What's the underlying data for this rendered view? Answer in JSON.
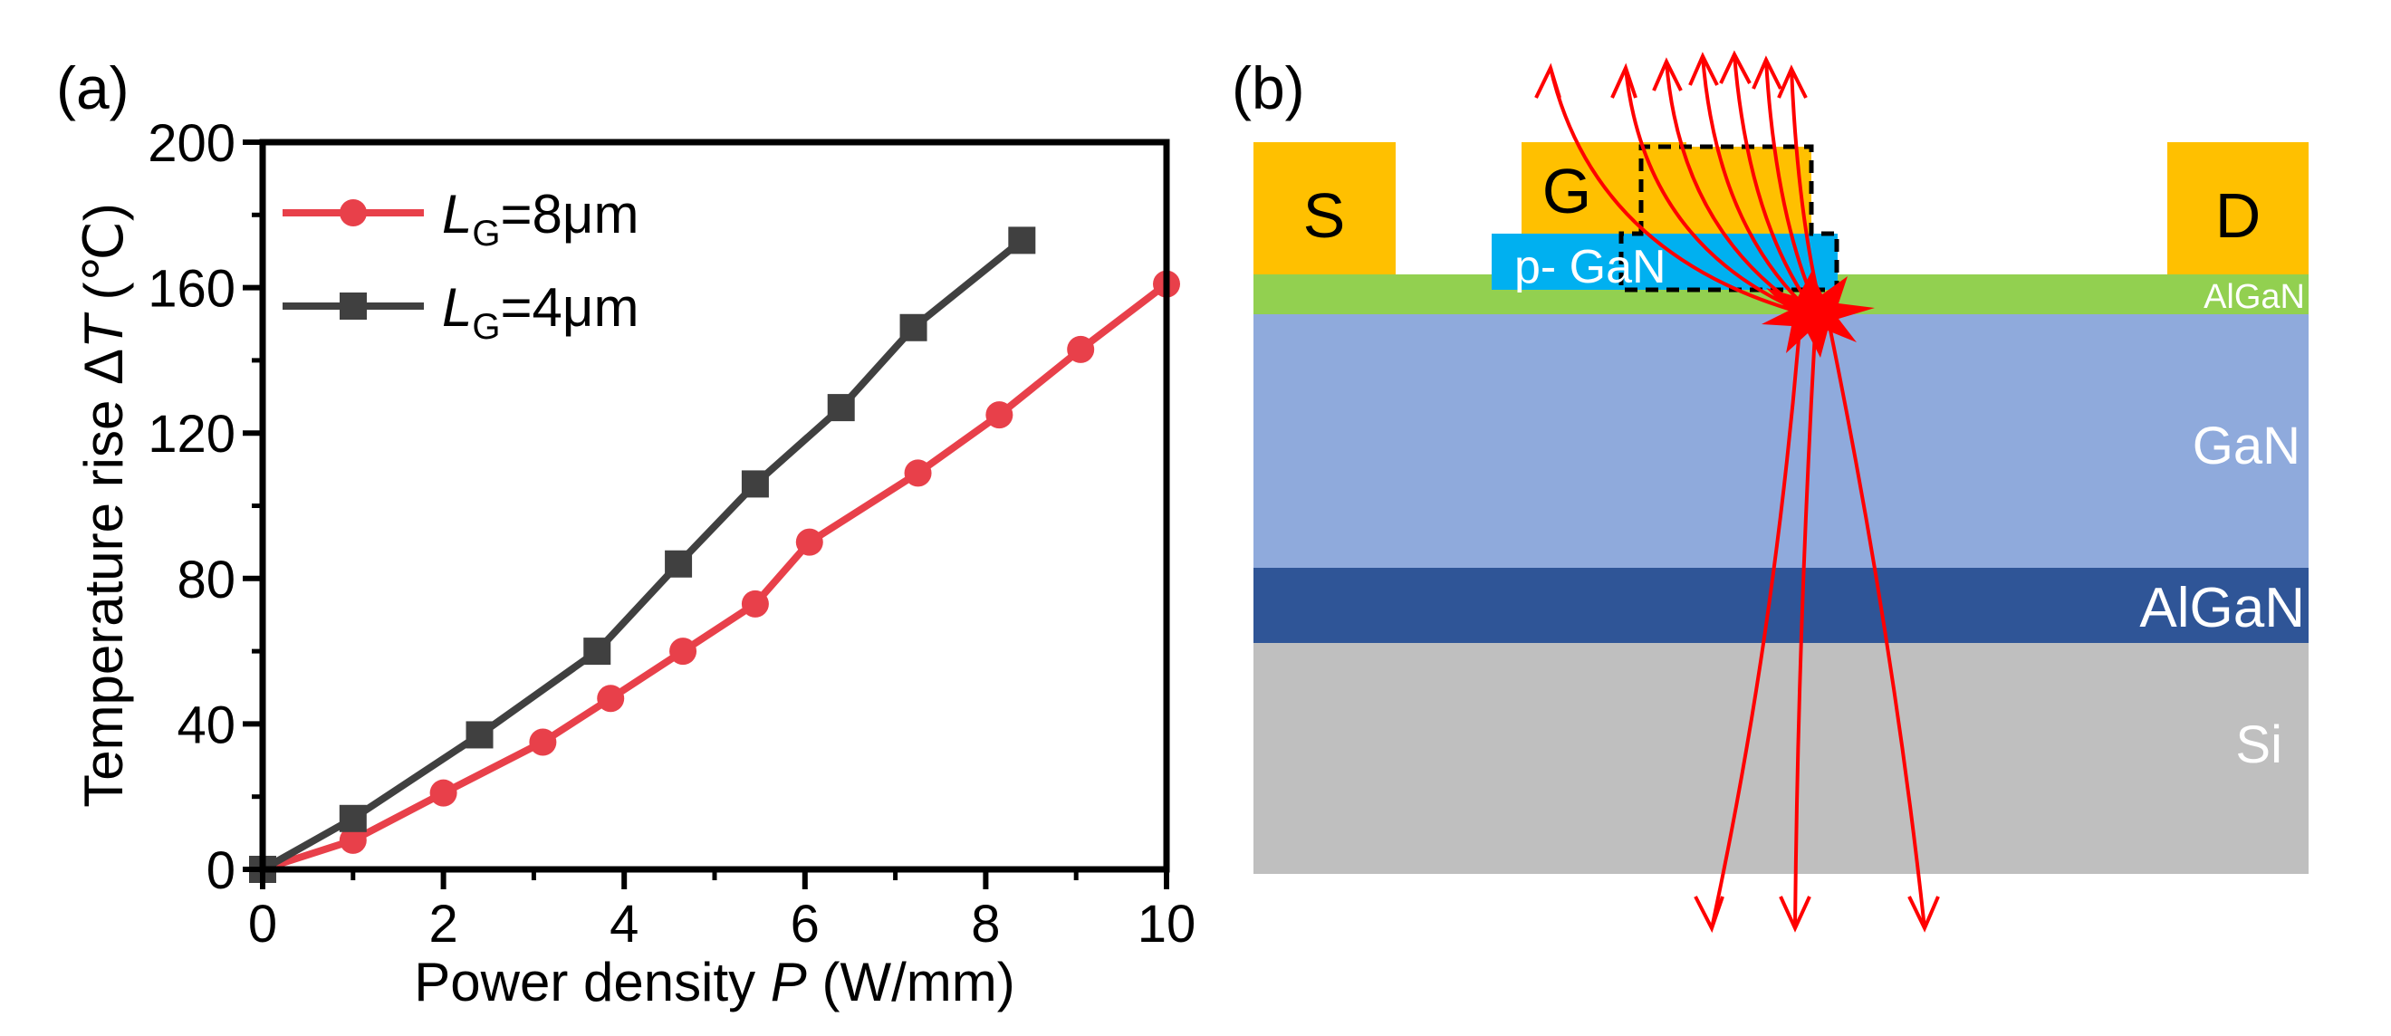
{
  "chart_data": [
    {
      "type": "line",
      "panel_label": "(a)",
      "xlabel_prefix": "Power density ",
      "xlabel_var": "P",
      "xlabel_suffix": " (W/mm)",
      "ylabel_prefix": "Temperature rise Δ",
      "ylabel_var": "T",
      "ylabel_suffix": " (℃)",
      "xlim": [
        0,
        10
      ],
      "ylim": [
        0,
        200
      ],
      "xticks": [
        0,
        2,
        4,
        6,
        8,
        10
      ],
      "yticks": [
        0,
        40,
        80,
        120,
        160,
        200
      ],
      "grid": false,
      "legend_position": "top-left",
      "series": [
        {
          "name": "LG=8μm",
          "legend_var": "L",
          "legend_sub": "G",
          "legend_rest": "=8μm",
          "marker": "circle",
          "color": "#e8404a",
          "x": [
            0,
            1.0,
            2.0,
            3.1,
            3.85,
            4.65,
            5.45,
            6.05,
            7.25,
            8.15,
            9.05,
            10.0
          ],
          "y": [
            0,
            8,
            21,
            35,
            47,
            60,
            73,
            90,
            109,
            125,
            143,
            161
          ]
        },
        {
          "name": "LG=4μm",
          "legend_var": "L",
          "legend_sub": "G",
          "legend_rest": "=4μm",
          "marker": "square",
          "color": "#404040",
          "x": [
            0,
            1.0,
            2.4,
            3.7,
            4.6,
            5.45,
            6.4,
            7.2,
            8.4
          ],
          "y": [
            0,
            14,
            37,
            60,
            84,
            106,
            127,
            149,
            173
          ]
        }
      ]
    },
    {
      "type": "diagram",
      "panel_label": "(b)",
      "electrodes": {
        "source": "S",
        "gate": "G",
        "drain": "D"
      },
      "layers": {
        "pgan": "p- GaN",
        "algan_barrier": "AlGaN",
        "gan_channel": "GaN",
        "algan_buffer": "AlGaN",
        "substrate": "Si"
      },
      "colors": {
        "electrode": "#ffc000",
        "pgan": "#00b0f0",
        "algan_barrier": "#92d050",
        "gan_channel": "#8faadc",
        "algan_buffer": "#2f5597",
        "substrate": "#bfbfbf",
        "ray": "#ff0000"
      }
    }
  ]
}
